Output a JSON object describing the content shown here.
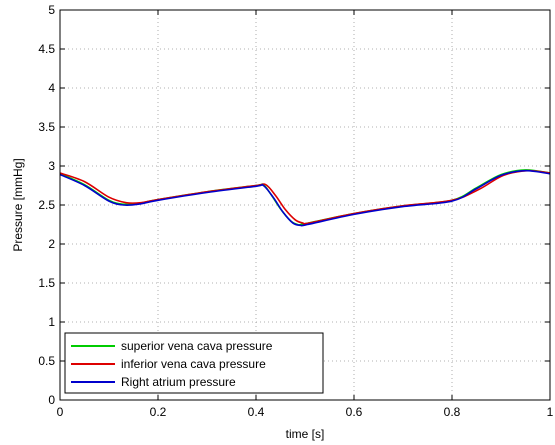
{
  "chart_data": {
    "type": "line",
    "title": "",
    "xlabel": "time [s]",
    "ylabel": "Pressure [mmHg]",
    "xlim": [
      0,
      1
    ],
    "ylim": [
      0,
      5
    ],
    "grid": true,
    "legend_position": "bottom-left",
    "x_ticks": [
      "0",
      "0.2",
      "0.4",
      "0.6",
      "0.8",
      "1"
    ],
    "y_ticks": [
      "0",
      "0.5",
      "1",
      "1.5",
      "2",
      "2.5",
      "3",
      "3.5",
      "4",
      "4.5",
      "5"
    ],
    "series": [
      {
        "name": "superior vena cava pressure",
        "color": "#00cc00",
        "x": [
          0,
          0.05,
          0.1,
          0.13,
          0.16,
          0.2,
          0.3,
          0.4,
          0.415,
          0.43,
          0.45,
          0.47,
          0.485,
          0.5,
          0.6,
          0.7,
          0.8,
          0.85,
          0.9,
          0.95,
          1.0
        ],
        "y": [
          2.9,
          2.76,
          2.56,
          2.51,
          2.52,
          2.57,
          2.67,
          2.75,
          2.76,
          2.64,
          2.45,
          2.3,
          2.25,
          2.26,
          2.39,
          2.49,
          2.56,
          2.72,
          2.89,
          2.95,
          2.91
        ]
      },
      {
        "name": "inferior vena cava pressure",
        "color": "#dd0000",
        "x": [
          0,
          0.05,
          0.1,
          0.135,
          0.165,
          0.2,
          0.3,
          0.4,
          0.42,
          0.44,
          0.46,
          0.48,
          0.495,
          0.51,
          0.6,
          0.7,
          0.8,
          0.855,
          0.905,
          0.955,
          1.0
        ],
        "y": [
          2.91,
          2.8,
          2.6,
          2.53,
          2.53,
          2.57,
          2.67,
          2.75,
          2.76,
          2.62,
          2.44,
          2.31,
          2.27,
          2.27,
          2.39,
          2.49,
          2.56,
          2.7,
          2.88,
          2.94,
          2.91
        ]
      },
      {
        "name": "Right atrium pressure",
        "color": "#0000cc",
        "x": [
          0,
          0.05,
          0.1,
          0.13,
          0.16,
          0.2,
          0.3,
          0.4,
          0.415,
          0.435,
          0.455,
          0.475,
          0.49,
          0.505,
          0.6,
          0.7,
          0.8,
          0.85,
          0.9,
          0.95,
          1.0
        ],
        "y": [
          2.89,
          2.75,
          2.55,
          2.5,
          2.51,
          2.56,
          2.66,
          2.74,
          2.75,
          2.6,
          2.41,
          2.27,
          2.24,
          2.25,
          2.38,
          2.48,
          2.55,
          2.71,
          2.88,
          2.94,
          2.9
        ]
      }
    ]
  }
}
